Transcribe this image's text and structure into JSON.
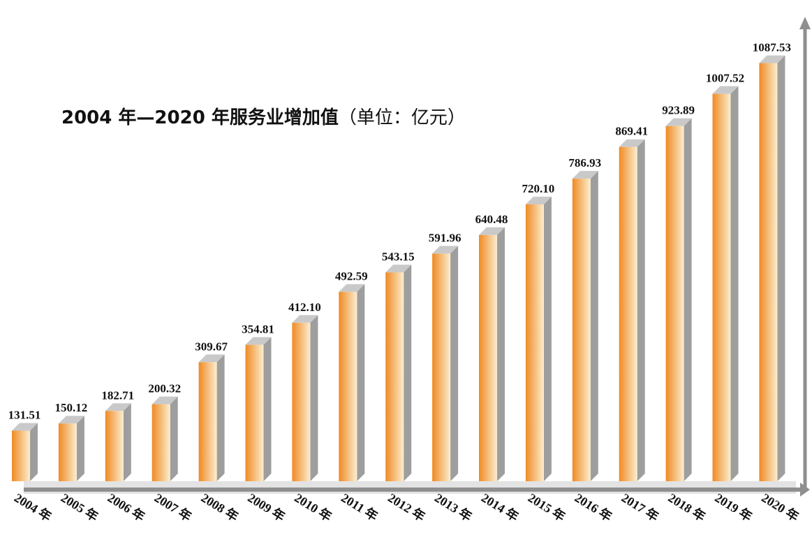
{
  "chart_data": {
    "type": "bar",
    "title": "2004 年—2020 年服务业增加值",
    "unit_label": "（单位：亿元）",
    "xlabel": "",
    "ylabel": "",
    "ylim": [
      0,
      1150
    ],
    "grid": false,
    "legend": "none",
    "categories": [
      "2004 年",
      "2005 年",
      "2006 年",
      "2007 年",
      "2008 年",
      "2009 年",
      "2010 年",
      "2011 年",
      "2012 年",
      "2013 年",
      "2014 年",
      "2015 年",
      "2016 年",
      "2017 年",
      "2018 年",
      "2019 年",
      "2020 年"
    ],
    "values": [
      131.51,
      150.12,
      182.71,
      200.32,
      309.67,
      354.81,
      412.1,
      492.59,
      543.15,
      591.96,
      640.48,
      720.1,
      786.93,
      869.41,
      923.89,
      1007.52,
      1087.53
    ],
    "value_labels": [
      "131.51",
      "150.12",
      "182.71",
      "200.32",
      "309.67",
      "354.81",
      "412.10",
      "492.59",
      "543.15",
      "591.96",
      "640.48",
      "720.10",
      "786.93",
      "869.41",
      "923.89",
      "1007.52",
      "1087.53"
    ],
    "colors": {
      "bar_dark": "#f08a24",
      "bar_light": "#fbeecf",
      "bar_side": "#9e9e9e",
      "bar_top": "#c9c9c9",
      "baseline": "#8f8f8f",
      "text": "#111111"
    }
  }
}
